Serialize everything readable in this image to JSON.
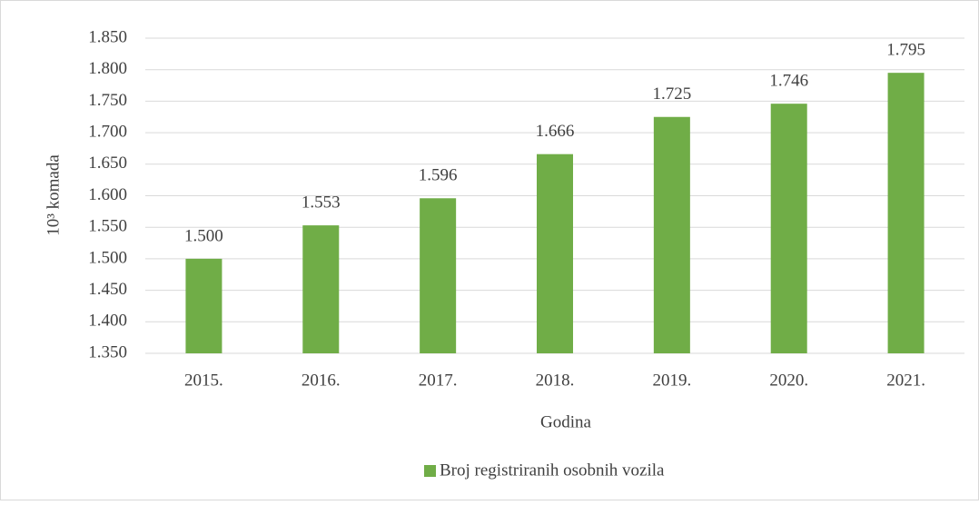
{
  "chart_data": {
    "type": "bar",
    "categories": [
      "2015.",
      "2016.",
      "2017.",
      "2018.",
      "2019.",
      "2020.",
      "2021."
    ],
    "series": [
      {
        "name": "Broj registriranih osobnih vozila",
        "color": "#70ad47",
        "values": [
          1500,
          1553,
          1596,
          1666,
          1725,
          1746,
          1795
        ],
        "value_labels": [
          "1.500",
          "1.553",
          "1.596",
          "1.666",
          "1.725",
          "1.746",
          "1.795"
        ]
      }
    ],
    "ylabel": "10³ komada",
    "xlabel": "Godina",
    "ylim": [
      1350,
      1850
    ],
    "yticks": [
      {
        "value": 1350,
        "label": "1.350"
      },
      {
        "value": 1400,
        "label": "1.400"
      },
      {
        "value": 1450,
        "label": "1.450"
      },
      {
        "value": 1500,
        "label": "1.500"
      },
      {
        "value": 1550,
        "label": "1.550"
      },
      {
        "value": 1600,
        "label": "1.600"
      },
      {
        "value": 1650,
        "label": "1.650"
      },
      {
        "value": 1700,
        "label": "1.700"
      },
      {
        "value": 1750,
        "label": "1.750"
      },
      {
        "value": 1800,
        "label": "1.800"
      },
      {
        "value": 1850,
        "label": "1.850"
      }
    ],
    "grid": true,
    "legend": "bottom"
  }
}
